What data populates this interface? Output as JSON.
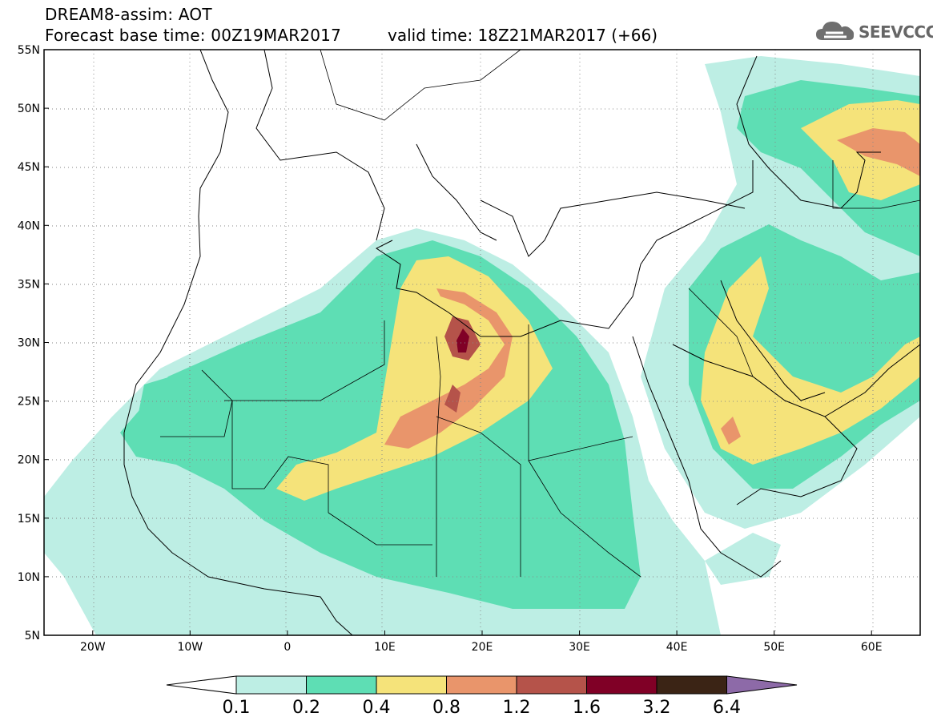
{
  "header": {
    "model_title": "DREAM8-assim: AOT",
    "base_time": "Forecast base time: 00Z19MAR2017",
    "valid_time": "valid time: 18Z21MAR2017 (+66)"
  },
  "logo": {
    "text": "SEEVCCC",
    "icon": "cloud-icon"
  },
  "map_axes": {
    "lon_ticks": [
      "20W",
      "10W",
      "0",
      "10E",
      "20E",
      "30E",
      "40E",
      "50E",
      "60E"
    ],
    "lat_ticks": [
      "55N",
      "50N",
      "45N",
      "40N",
      "35N",
      "30N",
      "25N",
      "20N",
      "15N",
      "10N",
      "5N"
    ],
    "lon_range": [
      -25,
      65
    ],
    "lat_range": [
      5,
      55
    ],
    "grid": "dotted"
  },
  "colorbar": {
    "levels": [
      "0.1",
      "0.2",
      "0.4",
      "0.8",
      "1.2",
      "1.6",
      "3.2",
      "6.4"
    ],
    "colors": [
      "#ffffff",
      "#bdeee4",
      "#5edeb4",
      "#f5e37a",
      "#e9956b",
      "#b5534a",
      "#800026",
      "#3b2415",
      "#8d6aa8"
    ]
  }
}
